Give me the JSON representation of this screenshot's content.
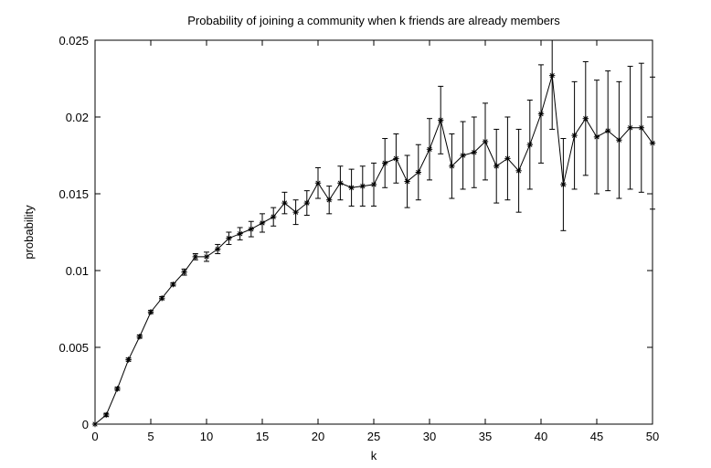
{
  "chart_data": {
    "type": "line",
    "title": "Probability of joining a community when k friends are already members",
    "xlabel": "k",
    "ylabel": "probability",
    "xlim": [
      0,
      50
    ],
    "ylim": [
      0,
      0.025
    ],
    "xticks": [
      "0",
      "5",
      "10",
      "15",
      "20",
      "25",
      "30",
      "35",
      "40",
      "45",
      "50"
    ],
    "yticks": [
      "0",
      "0.005",
      "0.01",
      "0.015",
      "0.02",
      "0.025"
    ],
    "grid": false,
    "marker": "asterisk",
    "error_bars": true,
    "series": [
      {
        "x": [
          0,
          1,
          2,
          3,
          4,
          5,
          6,
          7,
          8,
          9,
          10,
          11,
          12,
          13,
          14,
          15,
          16,
          17,
          18,
          19,
          20,
          21,
          22,
          23,
          24,
          25,
          26,
          27,
          28,
          29,
          30,
          31,
          32,
          33,
          34,
          35,
          36,
          37,
          38,
          39,
          40,
          41,
          42,
          43,
          44,
          45,
          46,
          47,
          48,
          49,
          50
        ],
        "y": [
          0,
          0.0006,
          0.0023,
          0.0042,
          0.0057,
          0.0073,
          0.0082,
          0.0091,
          0.0099,
          0.0109,
          0.0109,
          0.0114,
          0.0121,
          0.0124,
          0.0127,
          0.0131,
          0.0135,
          0.0144,
          0.0138,
          0.0144,
          0.0157,
          0.0146,
          0.0157,
          0.0154,
          0.0155,
          0.0156,
          0.017,
          0.0173,
          0.0158,
          0.0164,
          0.0179,
          0.0198,
          0.0168,
          0.0175,
          0.0177,
          0.0184,
          0.0168,
          0.0173,
          0.0165,
          0.0182,
          0.0202,
          0.0227,
          0.0156,
          0.0188,
          0.0199,
          0.0187,
          0.0191,
          0.0185,
          0.0193,
          0.0193,
          0.0183
        ],
        "error": [
          0,
          0.0001,
          0.0001,
          0.0001,
          0.0001,
          0.0001,
          0.0001,
          0.0001,
          0.0002,
          0.0002,
          0.0003,
          0.0003,
          0.0004,
          0.0004,
          0.0005,
          0.0006,
          0.0006,
          0.0007,
          0.0008,
          0.0008,
          0.001,
          0.0009,
          0.0011,
          0.0012,
          0.0013,
          0.0014,
          0.0016,
          0.0016,
          0.0017,
          0.0018,
          0.002,
          0.0022,
          0.0021,
          0.0022,
          0.0023,
          0.0025,
          0.0024,
          0.0027,
          0.0027,
          0.0029,
          0.0032,
          0.0035,
          0.003,
          0.0035,
          0.0037,
          0.0037,
          0.0039,
          0.0038,
          0.004,
          0.0042,
          0.0043
        ]
      }
    ]
  }
}
